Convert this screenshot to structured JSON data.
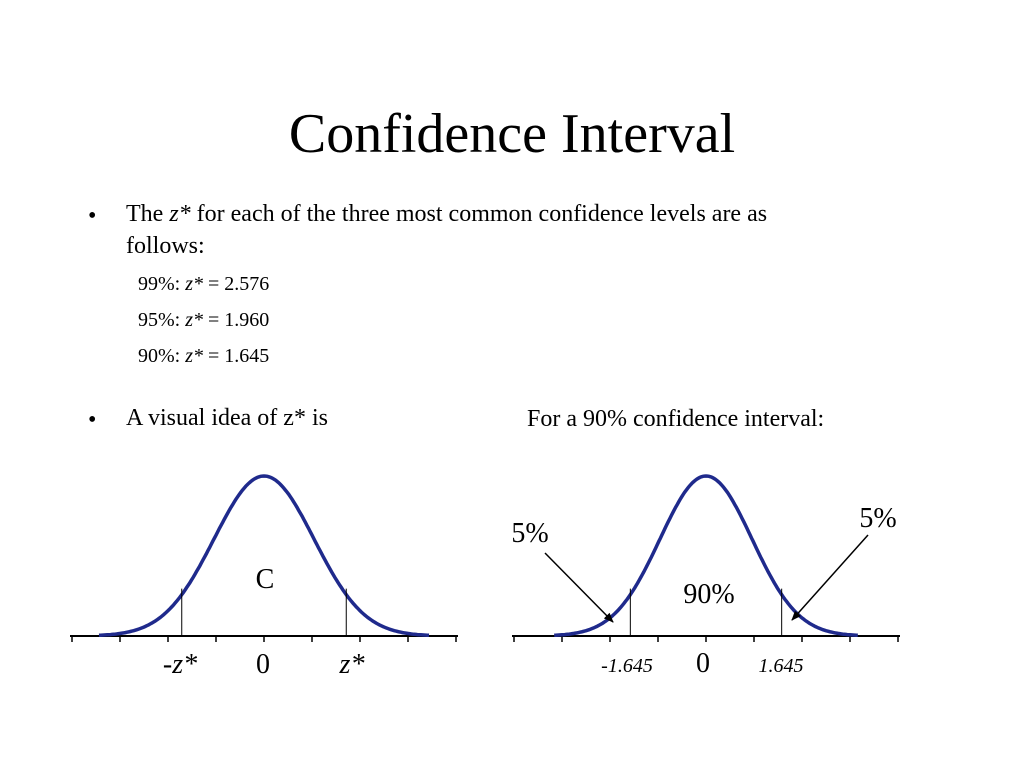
{
  "slide": {
    "title": "Confidence Interval",
    "bullet1": {
      "prefix": "The ",
      "zvar": "z*",
      "rest_line1": " for each of the three most common confidence levels are as",
      "line2": "follows:"
    },
    "levels": [
      {
        "label": "99%: ",
        "zvar": "z*",
        "value": " = 2.576"
      },
      {
        "label": "95%: ",
        "zvar": "z*",
        "value": " = 1.960"
      },
      {
        "label": "90%: ",
        "zvar": "z*",
        "value": " = 1.645"
      }
    ],
    "bullet2": "A visual idea of z* is",
    "caption": "For a 90% confidence interval:",
    "bullet_symbol": "•"
  },
  "diagrams": {
    "left": {
      "center_label": "C",
      "tick_neg": "-z*",
      "tick_zero": "0",
      "tick_pos": "z*"
    },
    "right": {
      "center_label": "90%",
      "tail_left": "5%",
      "tail_right": "5%",
      "tick_neg": "-1.645",
      "tick_zero": "0",
      "tick_pos": "1.645",
      "z_value": 1.645
    },
    "colors": {
      "curve": "#1f2a8c",
      "axis": "#000000"
    }
  }
}
